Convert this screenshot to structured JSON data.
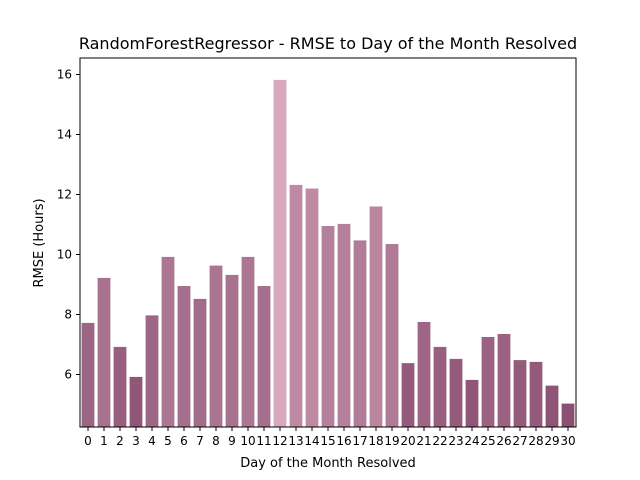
{
  "chart_data": {
    "type": "bar",
    "title": "RandomForestRegressor - RMSE to Day of the Month Resolved",
    "xlabel": "Day of the Month Resolved",
    "ylabel": "RMSE (Hours)",
    "categories": [
      "0",
      "1",
      "2",
      "3",
      "4",
      "5",
      "6",
      "7",
      "8",
      "9",
      "10",
      "11",
      "12",
      "13",
      "14",
      "15",
      "16",
      "17",
      "18",
      "19",
      "20",
      "21",
      "22",
      "23",
      "24",
      "25",
      "26",
      "27",
      "28",
      "29",
      "30"
    ],
    "values": [
      7.72,
      9.22,
      6.92,
      5.92,
      7.97,
      9.92,
      8.95,
      8.52,
      9.63,
      9.32,
      9.92,
      8.95,
      15.82,
      12.32,
      12.2,
      10.95,
      11.02,
      10.47,
      11.6,
      10.35,
      6.38,
      7.75,
      6.92,
      6.52,
      5.82,
      7.25,
      7.35,
      6.48,
      6.42,
      5.63,
      5.03
    ],
    "ylim": [
      4.25,
      16.55
    ],
    "yticks": [
      6,
      8,
      10,
      12,
      14,
      16
    ],
    "grid": false,
    "legend": "none",
    "color_scale": {
      "low": "#8a4f71",
      "high": "#d8a8bd"
    }
  }
}
